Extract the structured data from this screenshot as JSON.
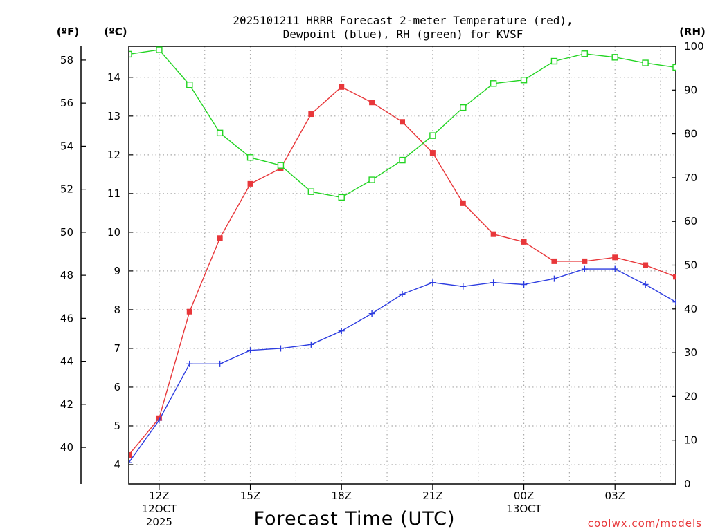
{
  "chart_data": {
    "type": "line",
    "title_line1": "2025101211 HRRR Forecast 2-meter Temperature (red),",
    "title_line2": "Dewpoint (blue), RH (green) for KVSF",
    "xlabel": "Forecast Time (UTC)",
    "credit": "coolwx.com/models",
    "unit_f": "(ºF)",
    "unit_c": "(ºC)",
    "unit_rh": "(RH)",
    "x_ticks": [
      {
        "hour": 1,
        "label": "12Z",
        "date1": "12OCT",
        "date2": "2025"
      },
      {
        "hour": 4,
        "label": "15Z"
      },
      {
        "hour": 7,
        "label": "18Z"
      },
      {
        "hour": 10,
        "label": "21Z"
      },
      {
        "hour": 13,
        "label": "00Z",
        "date1": "13OCT"
      },
      {
        "hour": 16,
        "label": "03Z"
      }
    ],
    "x_range": [
      0,
      18
    ],
    "c_range": [
      3.5,
      14.8
    ],
    "rh_range": [
      0,
      100
    ],
    "c_ticks": [
      "4",
      "5",
      "6",
      "7",
      "8",
      "9",
      "10",
      "11",
      "12",
      "13",
      "14"
    ],
    "f_ticks": [
      "40",
      "42",
      "44",
      "46",
      "48",
      "50",
      "52",
      "54",
      "56",
      "58"
    ],
    "rh_ticks": [
      "0",
      "10",
      "20",
      "30",
      "40",
      "50",
      "60",
      "70",
      "80",
      "90",
      "100"
    ],
    "series": [
      {
        "name": "2-meter Temperature",
        "unit": "C",
        "color": "#e8373a",
        "marker": "filled-square",
        "values": [
          4.25,
          5.2,
          7.95,
          9.85,
          11.25,
          11.65,
          13.05,
          13.75,
          13.35,
          12.85,
          12.05,
          10.75,
          9.95,
          9.75,
          9.25,
          9.25,
          9.35,
          9.15,
          8.85
        ]
      },
      {
        "name": "Dewpoint",
        "unit": "C",
        "color": "#2d3de0",
        "marker": "plus",
        "values": [
          4.05,
          5.15,
          6.6,
          6.6,
          6.95,
          7.0,
          7.1,
          7.45,
          7.9,
          8.4,
          8.7,
          8.6,
          8.7,
          8.65,
          8.8,
          9.05,
          9.05,
          8.65,
          8.2
        ]
      },
      {
        "name": "RH",
        "unit": "%",
        "color": "#22d422",
        "marker": "open-square",
        "values": [
          98.2,
          99.2,
          91.2,
          80.2,
          74.6,
          72.8,
          66.8,
          65.5,
          69.5,
          74.0,
          79.6,
          86.0,
          91.5,
          92.3,
          96.6,
          98.3,
          97.5,
          96.2,
          95.2
        ]
      }
    ]
  }
}
